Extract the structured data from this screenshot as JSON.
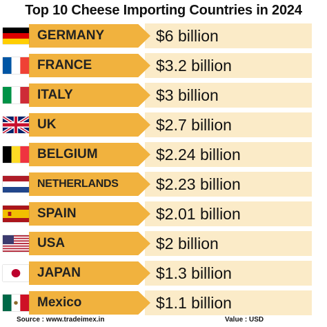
{
  "title": "Top 10 Cheese Importing Countries in 2024",
  "rows": [
    {
      "country": "GERMANY",
      "value": "$6 billion",
      "flag_icon": "germany-flag-icon"
    },
    {
      "country": "FRANCE",
      "value": "$3.2 billion",
      "flag_icon": "france-flag-icon"
    },
    {
      "country": "ITALY",
      "value": "$3 billion",
      "flag_icon": "italy-flag-icon"
    },
    {
      "country": "UK",
      "value": "$2.7 billion",
      "flag_icon": "uk-flag-icon"
    },
    {
      "country": "BELGIUM",
      "value": "$2.24 billion",
      "flag_icon": "belgium-flag-icon"
    },
    {
      "country": "NETHERLANDS",
      "value": "$2.23 billion",
      "flag_icon": "netherlands-flag-icon"
    },
    {
      "country": "SPAIN",
      "value": "$2.01 billion",
      "flag_icon": "spain-flag-icon"
    },
    {
      "country": "USA",
      "value": "$2 billion",
      "flag_icon": "usa-flag-icon"
    },
    {
      "country": "JAPAN",
      "value": "$1.3 billion",
      "flag_icon": "japan-flag-icon"
    },
    {
      "country": "Mexico",
      "value": "$1.1 billion",
      "flag_icon": "mexico-flag-icon"
    }
  ],
  "footer": {
    "source": "Source : www.tradeimex.in",
    "unit": "Value : USD"
  },
  "colors": {
    "arrow": "#f1b23e",
    "value_band": "#fbebc8"
  }
}
